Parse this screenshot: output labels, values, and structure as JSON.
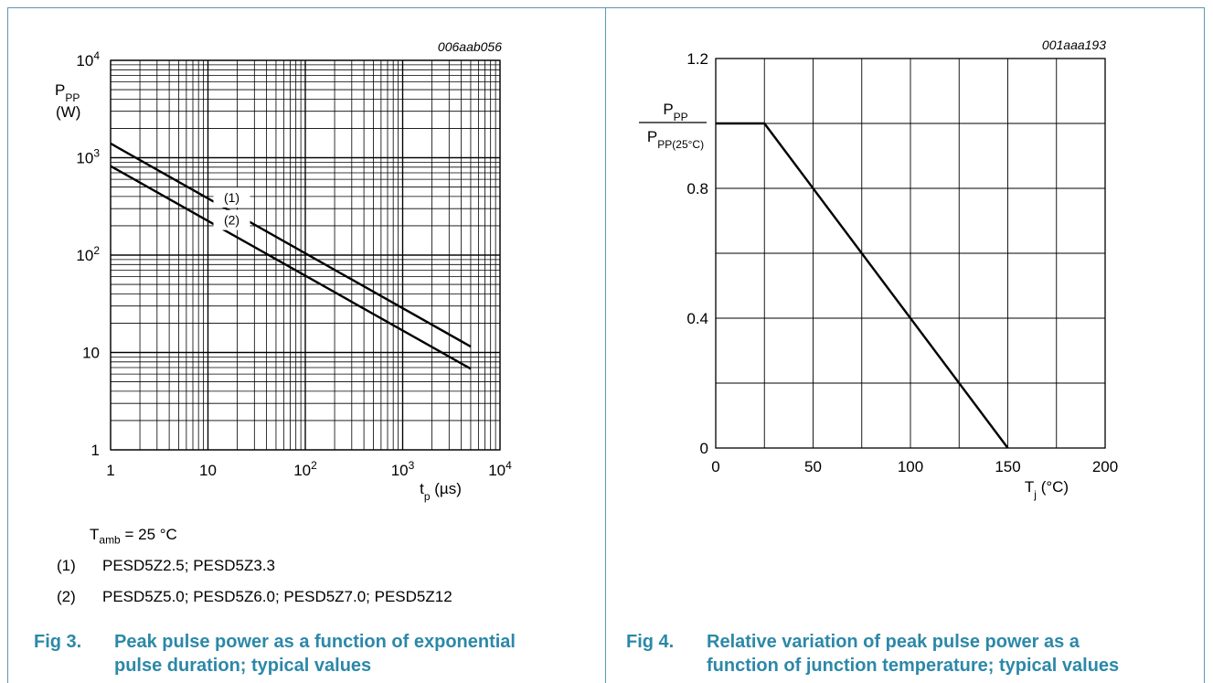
{
  "colors": {
    "frame": "#5a99b2",
    "caption": "#2c88a8",
    "line": "#000000"
  },
  "figures": [
    {
      "code": "006aab056",
      "caption_number": "Fig 3.",
      "caption_line1": "Peak pulse power as a function of exponential",
      "caption_line2": "pulse duration; typical values",
      "notes": {
        "condition_main": "T",
        "condition_sub": "amb",
        "condition_rest": " = 25 °C",
        "items": [
          {
            "num": "(1)",
            "text": "PESD5Z2.5; PESD5Z3.3"
          },
          {
            "num": "(2)",
            "text": "PESD5Z5.0; PESD5Z6.0; PESD5Z7.0; PESD5Z12"
          }
        ]
      }
    },
    {
      "code": "001aaa193",
      "caption_number": "Fig 4.",
      "caption_line1": "Relative variation of peak pulse power as a",
      "caption_line2": "function of junction temperature; typical values"
    }
  ],
  "chart_data": [
    {
      "type": "line",
      "xscale": "log",
      "yscale": "log",
      "xlim": [
        1,
        10000
      ],
      "ylim": [
        1,
        10000
      ],
      "x_ticks": [
        {
          "base": "1",
          "exp": ""
        },
        {
          "base": "10",
          "exp": ""
        },
        {
          "base": "10",
          "exp": "2"
        },
        {
          "base": "10",
          "exp": "3"
        },
        {
          "base": "10",
          "exp": "4"
        }
      ],
      "y_ticks": [
        {
          "base": "1",
          "exp": ""
        },
        {
          "base": "10",
          "exp": ""
        },
        {
          "base": "10",
          "exp": "2"
        },
        {
          "base": "10",
          "exp": "3"
        },
        {
          "base": "10",
          "exp": "4"
        }
      ],
      "xlabel_main": "t",
      "xlabel_sub": "p",
      "xlabel_unit": " (µs)",
      "ylabel_main": "P",
      "ylabel_sub": "PP",
      "ylabel_unit": "(W)",
      "grid": true,
      "series": [
        {
          "name": "(1)",
          "x": [
            1,
            5000
          ],
          "y": [
            1400,
            11.5
          ],
          "label_x": 10
        },
        {
          "name": "(2)",
          "x": [
            1,
            5000
          ],
          "y": [
            820,
            6.8
          ],
          "label_x": 10
        }
      ]
    },
    {
      "type": "line",
      "xlim": [
        0,
        200
      ],
      "ylim": [
        0,
        1.2
      ],
      "x_ticks": [
        "0",
        "50",
        "100",
        "150",
        "200"
      ],
      "y_ticks": [
        "0",
        "0.4",
        "0.8",
        "1.2"
      ],
      "xlabel_main": "T",
      "xlabel_sub": "j",
      "xlabel_unit": " (°C)",
      "ylabel_num_main": "P",
      "ylabel_num_sub": "PP",
      "ylabel_den_main": "P",
      "ylabel_den_sub": "PP(25°C)",
      "grid": true,
      "series": [
        {
          "x": [
            0,
            25,
            150
          ],
          "y": [
            1.0,
            1.0,
            0
          ]
        }
      ]
    }
  ]
}
